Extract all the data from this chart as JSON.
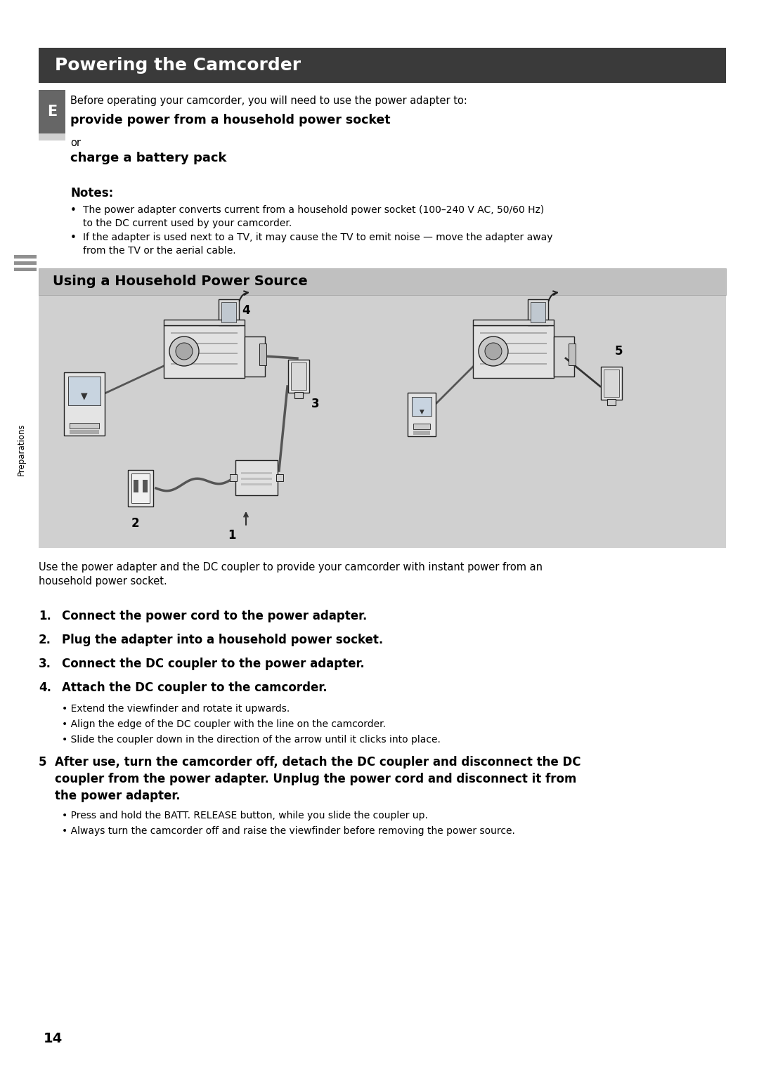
{
  "page_bg": "#ffffff",
  "title": "Powering the Camcorder",
  "title_bg": "#3a3a3a",
  "title_color": "#ffffff",
  "sidebar_label": "E",
  "sidebar_bg": "#666666",
  "sidebar_color": "#ffffff",
  "section2_title": "Using a Household Power Source",
  "section2_bg": "#c0c0c0",
  "diagram_bg": "#d0d0d0",
  "preparations_label": "Preparations",
  "page_number": "14",
  "intro_text": "Before operating your camcorder, you will need to use the power adapter to:",
  "bold_line1": "provide power from a household power socket",
  "or_text": "or",
  "bold_line2": "charge a battery pack",
  "notes_header": "Notes:",
  "note1_a": "The power adapter converts current from a household power socket (100–240 V AC, 50/60 Hz)",
  "note1_b": "to the DC current used by your camcorder.",
  "note2_a": "If the adapter is used next to a TV, it may cause the TV to emit noise — move the adapter away",
  "note2_b": "from the TV or the aerial cable.",
  "caption_a": "Use the power adapter and the DC coupler to provide your camcorder with instant power from an",
  "caption_b": "household power socket.",
  "step1": "Connect the power cord to the power adapter.",
  "step2": "Plug the adapter into a household power socket.",
  "step3": "Connect the DC coupler to the power adapter.",
  "step4": "Attach the DC coupler to the camcorder.",
  "step4_b1": "Extend the viewfinder and rotate it upwards.",
  "step4_b2": "Align the edge of the DC coupler with the line on the camcorder.",
  "step4_b3": "Slide the coupler down in the direction of the arrow until it clicks into place.",
  "step5_a": "After use, turn the camcorder off, detach the DC coupler and disconnect the DC",
  "step5_b": "coupler from the power adapter. Unplug the power cord and disconnect it from",
  "step5_c": "the power adapter.",
  "step5_b1": "Press and hold the BATT. RELEASE button, while you slide the coupler up.",
  "step5_b2": "Always turn the camcorder off and raise the viewfinder before removing the power source."
}
